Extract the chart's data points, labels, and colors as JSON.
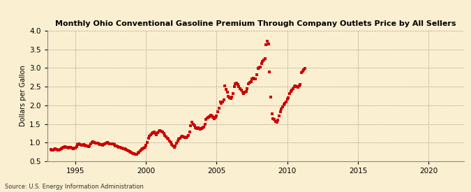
{
  "title": "Monthly Ohio Conventional Gasoline Premium Through Company Outlets Price by All Sellers",
  "ylabel": "Dollars per Gallon",
  "source": "Source: U.S. Energy Information Administration",
  "background_color": "#faefd0",
  "marker_color": "#cc0000",
  "xlim": [
    1993.0,
    2022.5
  ],
  "ylim": [
    0.5,
    4.0
  ],
  "yticks": [
    0.5,
    1.0,
    1.5,
    2.0,
    2.5,
    3.0,
    3.5,
    4.0
  ],
  "xticks": [
    1995,
    2000,
    2005,
    2010,
    2015,
    2020
  ],
  "data": [
    [
      1993.25,
      0.82
    ],
    [
      1993.33,
      0.8
    ],
    [
      1993.42,
      0.8
    ],
    [
      1993.5,
      0.81
    ],
    [
      1993.58,
      0.83
    ],
    [
      1993.67,
      0.82
    ],
    [
      1993.75,
      0.8
    ],
    [
      1993.83,
      0.8
    ],
    [
      1993.92,
      0.81
    ],
    [
      1994.0,
      0.83
    ],
    [
      1994.08,
      0.85
    ],
    [
      1994.17,
      0.87
    ],
    [
      1994.25,
      0.89
    ],
    [
      1994.33,
      0.88
    ],
    [
      1994.42,
      0.87
    ],
    [
      1994.5,
      0.86
    ],
    [
      1994.58,
      0.87
    ],
    [
      1994.67,
      0.87
    ],
    [
      1994.75,
      0.85
    ],
    [
      1994.83,
      0.84
    ],
    [
      1994.92,
      0.85
    ],
    [
      1995.0,
      0.86
    ],
    [
      1995.08,
      0.9
    ],
    [
      1995.17,
      0.94
    ],
    [
      1995.25,
      0.96
    ],
    [
      1995.33,
      0.94
    ],
    [
      1995.42,
      0.93
    ],
    [
      1995.5,
      0.93
    ],
    [
      1995.58,
      0.94
    ],
    [
      1995.67,
      0.93
    ],
    [
      1995.75,
      0.92
    ],
    [
      1995.83,
      0.91
    ],
    [
      1995.92,
      0.9
    ],
    [
      1996.0,
      0.91
    ],
    [
      1996.08,
      0.96
    ],
    [
      1996.17,
      1.01
    ],
    [
      1996.25,
      1.02
    ],
    [
      1996.33,
      1.0
    ],
    [
      1996.42,
      0.99
    ],
    [
      1996.5,
      0.98
    ],
    [
      1996.58,
      0.99
    ],
    [
      1996.67,
      0.97
    ],
    [
      1996.75,
      0.95
    ],
    [
      1996.83,
      0.94
    ],
    [
      1996.92,
      0.93
    ],
    [
      1997.0,
      0.94
    ],
    [
      1997.08,
      0.97
    ],
    [
      1997.17,
      0.99
    ],
    [
      1997.25,
      1.0
    ],
    [
      1997.33,
      0.99
    ],
    [
      1997.42,
      0.97
    ],
    [
      1997.5,
      0.97
    ],
    [
      1997.58,
      0.97
    ],
    [
      1997.67,
      0.96
    ],
    [
      1997.75,
      0.94
    ],
    [
      1997.83,
      0.92
    ],
    [
      1997.92,
      0.91
    ],
    [
      1998.0,
      0.9
    ],
    [
      1998.08,
      0.88
    ],
    [
      1998.17,
      0.87
    ],
    [
      1998.25,
      0.86
    ],
    [
      1998.33,
      0.85
    ],
    [
      1998.42,
      0.84
    ],
    [
      1998.5,
      0.83
    ],
    [
      1998.58,
      0.82
    ],
    [
      1998.67,
      0.8
    ],
    [
      1998.75,
      0.79
    ],
    [
      1998.83,
      0.77
    ],
    [
      1998.92,
      0.75
    ],
    [
      1999.0,
      0.73
    ],
    [
      1999.08,
      0.71
    ],
    [
      1999.17,
      0.7
    ],
    [
      1999.25,
      0.68
    ],
    [
      1999.33,
      0.69
    ],
    [
      1999.42,
      0.72
    ],
    [
      1999.5,
      0.75
    ],
    [
      1999.58,
      0.78
    ],
    [
      1999.67,
      0.82
    ],
    [
      1999.75,
      0.84
    ],
    [
      1999.83,
      0.86
    ],
    [
      1999.92,
      0.88
    ],
    [
      2000.0,
      0.93
    ],
    [
      2000.08,
      1.0
    ],
    [
      2000.17,
      1.12
    ],
    [
      2000.25,
      1.17
    ],
    [
      2000.33,
      1.22
    ],
    [
      2000.42,
      1.25
    ],
    [
      2000.5,
      1.27
    ],
    [
      2000.58,
      1.28
    ],
    [
      2000.67,
      1.25
    ],
    [
      2000.75,
      1.21
    ],
    [
      2000.83,
      1.27
    ],
    [
      2000.92,
      1.3
    ],
    [
      2001.0,
      1.32
    ],
    [
      2001.08,
      1.31
    ],
    [
      2001.17,
      1.28
    ],
    [
      2001.25,
      1.25
    ],
    [
      2001.33,
      1.2
    ],
    [
      2001.42,
      1.15
    ],
    [
      2001.5,
      1.12
    ],
    [
      2001.58,
      1.09
    ],
    [
      2001.67,
      1.05
    ],
    [
      2001.75,
      1.0
    ],
    [
      2001.83,
      0.95
    ],
    [
      2001.92,
      0.92
    ],
    [
      2002.0,
      0.88
    ],
    [
      2002.08,
      0.91
    ],
    [
      2002.17,
      0.99
    ],
    [
      2002.25,
      1.05
    ],
    [
      2002.33,
      1.1
    ],
    [
      2002.42,
      1.12
    ],
    [
      2002.5,
      1.15
    ],
    [
      2002.58,
      1.17
    ],
    [
      2002.67,
      1.15
    ],
    [
      2002.75,
      1.14
    ],
    [
      2002.83,
      1.13
    ],
    [
      2002.92,
      1.15
    ],
    [
      2003.0,
      1.19
    ],
    [
      2003.08,
      1.28
    ],
    [
      2003.17,
      1.45
    ],
    [
      2003.25,
      1.55
    ],
    [
      2003.33,
      1.5
    ],
    [
      2003.42,
      1.46
    ],
    [
      2003.5,
      1.4
    ],
    [
      2003.58,
      1.38
    ],
    [
      2003.67,
      1.4
    ],
    [
      2003.75,
      1.38
    ],
    [
      2003.83,
      1.36
    ],
    [
      2003.92,
      1.38
    ],
    [
      2004.0,
      1.4
    ],
    [
      2004.08,
      1.42
    ],
    [
      2004.17,
      1.5
    ],
    [
      2004.25,
      1.62
    ],
    [
      2004.33,
      1.66
    ],
    [
      2004.42,
      1.68
    ],
    [
      2004.5,
      1.7
    ],
    [
      2004.58,
      1.73
    ],
    [
      2004.67,
      1.71
    ],
    [
      2004.75,
      1.68
    ],
    [
      2004.83,
      1.65
    ],
    [
      2004.92,
      1.68
    ],
    [
      2005.0,
      1.72
    ],
    [
      2005.08,
      1.82
    ],
    [
      2005.17,
      1.92
    ],
    [
      2005.25,
      2.1
    ],
    [
      2005.33,
      2.05
    ],
    [
      2005.42,
      2.1
    ],
    [
      2005.5,
      2.15
    ],
    [
      2005.58,
      2.52
    ],
    [
      2005.67,
      2.42
    ],
    [
      2005.75,
      2.36
    ],
    [
      2005.83,
      2.25
    ],
    [
      2005.92,
      2.2
    ],
    [
      2006.0,
      2.18
    ],
    [
      2006.08,
      2.22
    ],
    [
      2006.17,
      2.32
    ],
    [
      2006.25,
      2.5
    ],
    [
      2006.33,
      2.58
    ],
    [
      2006.42,
      2.6
    ],
    [
      2006.5,
      2.55
    ],
    [
      2006.58,
      2.5
    ],
    [
      2006.67,
      2.45
    ],
    [
      2006.75,
      2.4
    ],
    [
      2006.83,
      2.36
    ],
    [
      2006.92,
      2.32
    ],
    [
      2007.0,
      2.35
    ],
    [
      2007.08,
      2.38
    ],
    [
      2007.17,
      2.44
    ],
    [
      2007.25,
      2.58
    ],
    [
      2007.33,
      2.62
    ],
    [
      2007.42,
      2.64
    ],
    [
      2007.5,
      2.7
    ],
    [
      2007.58,
      2.73
    ],
    [
      2007.67,
      2.7
    ],
    [
      2007.75,
      2.7
    ],
    [
      2007.83,
      2.82
    ],
    [
      2007.92,
      2.98
    ],
    [
      2008.0,
      3.0
    ],
    [
      2008.08,
      3.02
    ],
    [
      2008.17,
      3.12
    ],
    [
      2008.25,
      3.17
    ],
    [
      2008.33,
      3.22
    ],
    [
      2008.42,
      3.25
    ],
    [
      2008.5,
      3.62
    ],
    [
      2008.58,
      3.72
    ],
    [
      2008.67,
      3.65
    ],
    [
      2008.75,
      2.9
    ],
    [
      2008.83,
      2.22
    ],
    [
      2008.92,
      1.78
    ],
    [
      2009.0,
      1.65
    ],
    [
      2009.08,
      1.62
    ],
    [
      2009.17,
      1.57
    ],
    [
      2009.25,
      1.55
    ],
    [
      2009.33,
      1.6
    ],
    [
      2009.42,
      1.72
    ],
    [
      2009.5,
      1.82
    ],
    [
      2009.58,
      1.9
    ],
    [
      2009.67,
      1.96
    ],
    [
      2009.75,
      2.01
    ],
    [
      2009.83,
      2.06
    ],
    [
      2009.92,
      2.1
    ],
    [
      2010.0,
      2.16
    ],
    [
      2010.08,
      2.21
    ],
    [
      2010.17,
      2.32
    ],
    [
      2010.25,
      2.37
    ],
    [
      2010.33,
      2.41
    ],
    [
      2010.42,
      2.45
    ],
    [
      2010.5,
      2.5
    ],
    [
      2010.58,
      2.52
    ],
    [
      2010.67,
      2.5
    ],
    [
      2010.75,
      2.48
    ],
    [
      2010.83,
      2.52
    ],
    [
      2010.92,
      2.55
    ],
    [
      2011.0,
      2.87
    ],
    [
      2011.08,
      2.92
    ],
    [
      2011.17,
      2.95
    ],
    [
      2011.25,
      2.98
    ]
  ]
}
